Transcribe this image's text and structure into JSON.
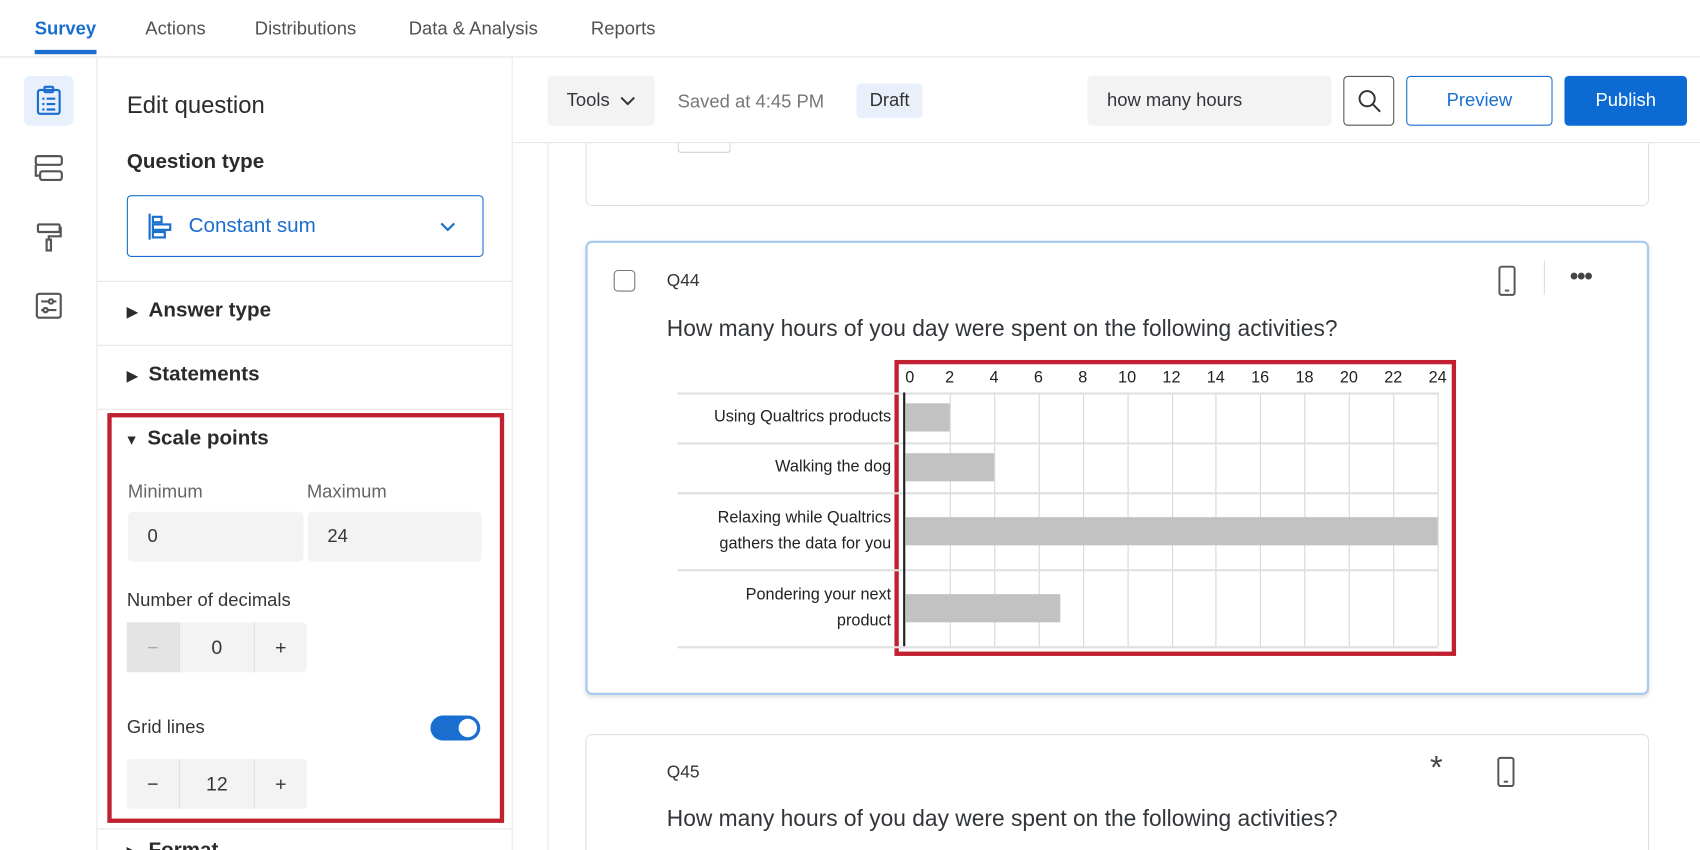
{
  "nav": {
    "tabs": [
      {
        "label": "Survey",
        "active": true
      },
      {
        "label": "Actions"
      },
      {
        "label": "Distributions"
      },
      {
        "label": "Data & Analysis"
      },
      {
        "label": "Reports"
      }
    ]
  },
  "rail": {
    "icons": [
      "survey-clipboard-icon",
      "survey-flow-icon",
      "look-and-feel-roller-icon",
      "survey-options-icon"
    ]
  },
  "panel": {
    "title": "Edit question",
    "question_type_label": "Question type",
    "question_type_value": "Constant sum",
    "sections": {
      "answer_type": "Answer type",
      "statements": "Statements",
      "scale_points": "Scale points",
      "format": "Format"
    },
    "minimum_label": "Minimum",
    "minimum_value": "0",
    "maximum_label": "Maximum",
    "maximum_value": "24",
    "decimals_label": "Number of decimals",
    "decimals_value": "0",
    "gridlines_label": "Grid lines",
    "gridlines_enabled": true,
    "gridlines_value": "12",
    "minus": "−",
    "plus": "+"
  },
  "toolbar": {
    "tools_label": "Tools",
    "saved_text": "Saved at 4:45 PM",
    "draft_badge": "Draft",
    "search_value": "how many hours",
    "preview_label": "Preview",
    "publish_label": "Publish"
  },
  "colors": {
    "accent": "#1a6ed0",
    "highlight": "#c0202f",
    "bar": "#c2c2c2"
  },
  "q44": {
    "id": "Q44",
    "text": "How many hours of you day were spent on the following activities?"
  },
  "q45": {
    "id": "Q45",
    "text": "How many hours of you day were spent on the following activities?"
  },
  "chart_data": {
    "type": "bar",
    "orientation": "horizontal",
    "categories": [
      "Using Qualtrics products",
      "Walking the dog",
      "Relaxing while Qualtrics gathers the data for you",
      "Pondering your next product"
    ],
    "category_lines": [
      [
        "Using Qualtrics products"
      ],
      [
        "Walking the dog"
      ],
      [
        "Relaxing while Qualtrics",
        "gathers the data for you"
      ],
      [
        "Pondering your next",
        "product"
      ]
    ],
    "values": [
      2,
      4,
      24,
      7
    ],
    "xlim": [
      0,
      24
    ],
    "ticks": [
      "0",
      "2",
      "4",
      "6",
      "8",
      "10",
      "12",
      "14",
      "16",
      "18",
      "20",
      "22",
      "24"
    ],
    "grid": true
  }
}
